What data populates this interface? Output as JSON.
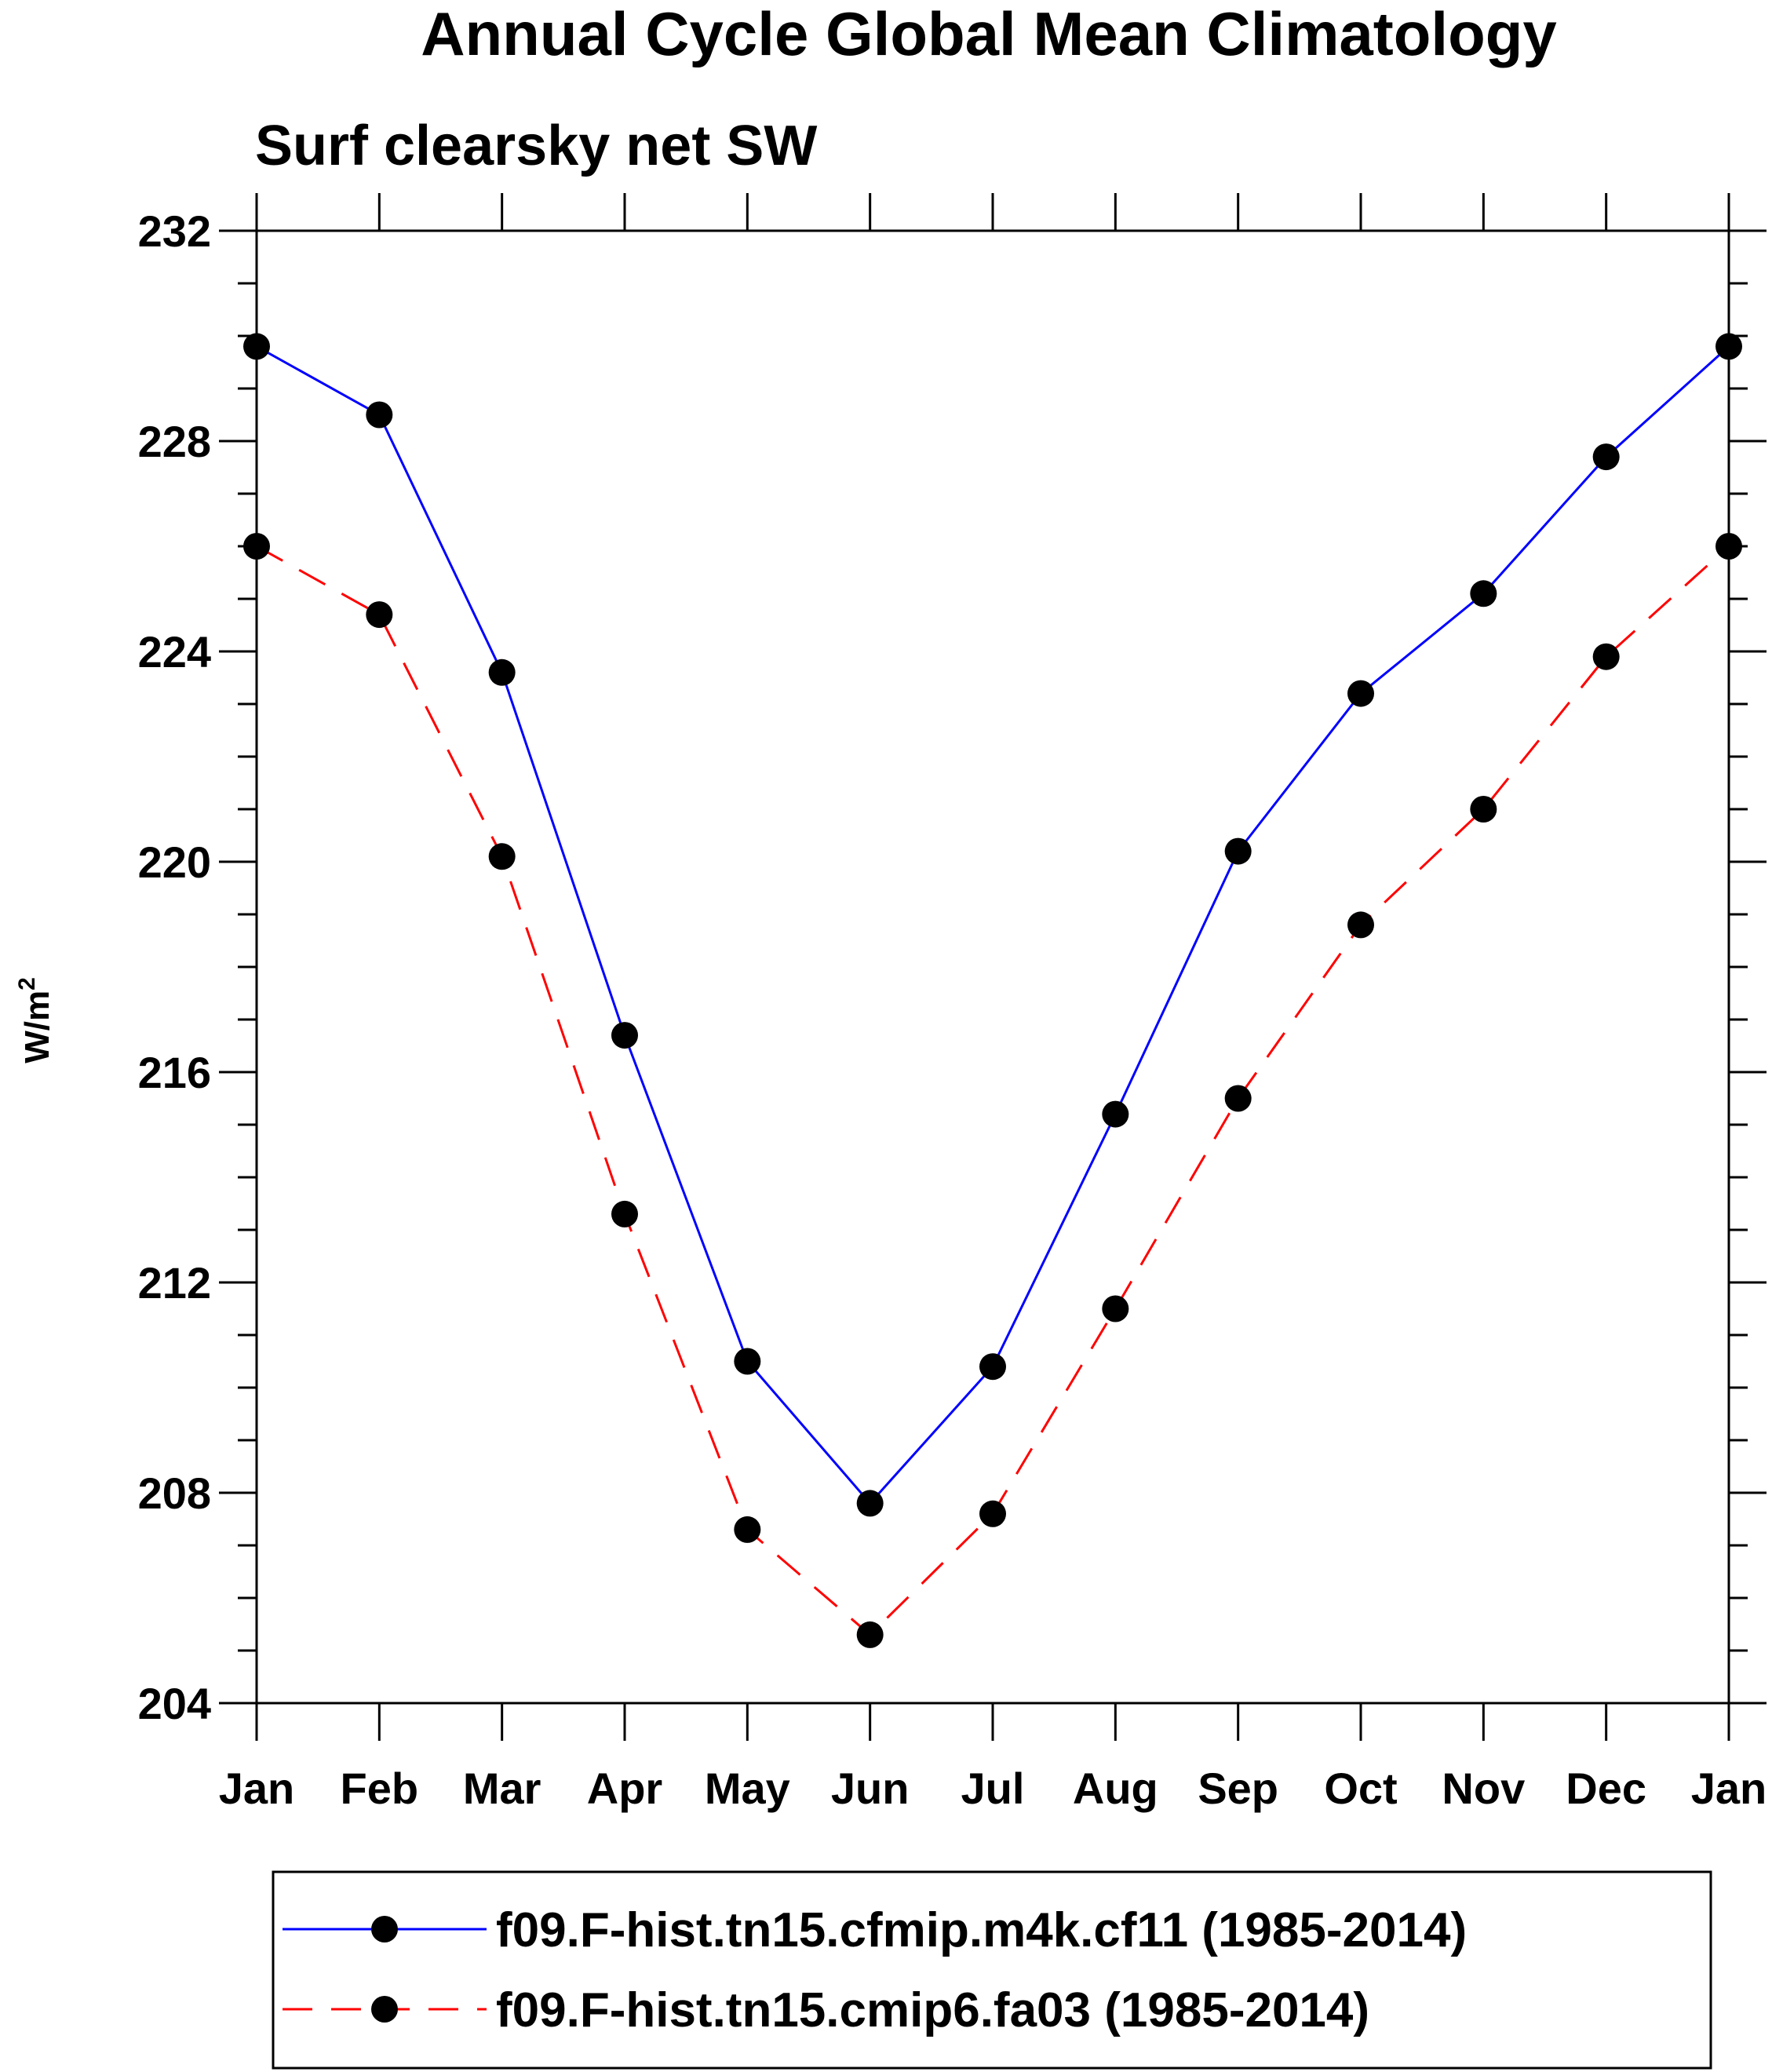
{
  "chart_data": {
    "type": "line",
    "title": "Annual Cycle Global Mean Climatology",
    "subtitle": "Surf clearsky net SW",
    "ylabel": "W/m",
    "ylabel_superscript": "2",
    "xlabel": "",
    "categories": [
      "Jan",
      "Feb",
      "Mar",
      "Apr",
      "May",
      "Jun",
      "Jul",
      "Aug",
      "Sep",
      "Oct",
      "Nov",
      "Dec",
      "Jan"
    ],
    "ylim": [
      204,
      232
    ],
    "yticks": [
      204,
      208,
      212,
      216,
      220,
      224,
      228,
      232
    ],
    "ytick_labels": [
      "204",
      "208",
      "212",
      "216",
      "220",
      "224",
      "228",
      "232"
    ],
    "series": [
      {
        "name": "f09.F-hist.tn15.cfmip.m4k.cf11 (1985-2014)",
        "color": "#0000ff",
        "style": "solid",
        "values": [
          229.8,
          228.5,
          223.6,
          216.7,
          210.5,
          207.8,
          210.4,
          215.2,
          220.2,
          223.2,
          225.1,
          227.7,
          229.8
        ]
      },
      {
        "name": "f09.F-hist.tn15.cmip6.fa03 (1985-2014)",
        "color": "#ff0000",
        "style": "dashed",
        "values": [
          226.0,
          224.7,
          220.1,
          213.3,
          207.3,
          205.3,
          207.6,
          211.5,
          215.5,
          218.8,
          221.0,
          223.9,
          226.0
        ]
      }
    ],
    "marker_color": "#000000",
    "legend_position": "bottom"
  }
}
